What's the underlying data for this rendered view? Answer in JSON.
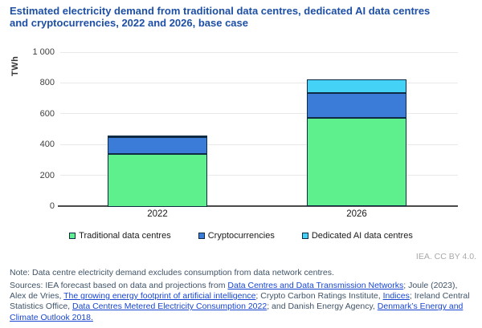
{
  "title": {
    "lines": [
      "Estimated electricity demand from traditional data centres, dedicated AI data centres",
      "and cryptocurrencies, 2022 and 2026, base case"
    ]
  },
  "chart_data": {
    "type": "bar",
    "stacked": true,
    "categories": [
      "2022",
      "2026"
    ],
    "series": [
      {
        "name": "Traditional data centres",
        "color": "#5ef08d",
        "values": [
          345,
          575
        ]
      },
      {
        "name": "Cryptocurrencies",
        "color": "#3c7cd9",
        "values": [
          110,
          160
        ]
      },
      {
        "name": "Dedicated AI data centres",
        "color": "#45d2f7",
        "values": [
          5,
          90
        ]
      }
    ],
    "totals": [
      460,
      825
    ],
    "ylabel": "TWh",
    "ylim": [
      0,
      1000
    ],
    "yticks": [
      0,
      200,
      400,
      600,
      800,
      1000
    ],
    "ytick_labels": [
      "0",
      "200",
      "400",
      "600",
      "800",
      "1 000"
    ],
    "grid": true,
    "legend_position": "bottom",
    "bar_border_color": "#0f2b44"
  },
  "attribution": "IEA. CC BY 4.0.",
  "note": "Note: Data centre electricity demand excludes consumption from data network centres.",
  "sources": {
    "segments": [
      {
        "text": "Sources: IEA forecast based on data and projections from ",
        "link": false
      },
      {
        "text": "Data Centres and Data Transmission Networks",
        "link": true
      },
      {
        "text": "; Joule (2023), Alex de Vries, ",
        "link": false
      },
      {
        "text": "The growing energy footprint of artificial intelligence",
        "link": true
      },
      {
        "text": "; Crypto Carbon Ratings Institute, ",
        "link": false
      },
      {
        "text": "Indices",
        "link": true
      },
      {
        "text": "; Ireland Central Statistics Office, ",
        "link": false
      },
      {
        "text": "Data Centres Metered Electricity Consumption 2022",
        "link": true
      },
      {
        "text": "; and Danish Energy Agency, ",
        "link": false
      },
      {
        "text": "Denmark’s Energy and Climate Outlook 2018.",
        "link": true
      }
    ]
  },
  "colors": {
    "title": "#1d4fa5",
    "link": "#1745d1",
    "note_text": "#3f5368",
    "gridline": "#e9e9e9",
    "axis": "#4a4a4a"
  }
}
